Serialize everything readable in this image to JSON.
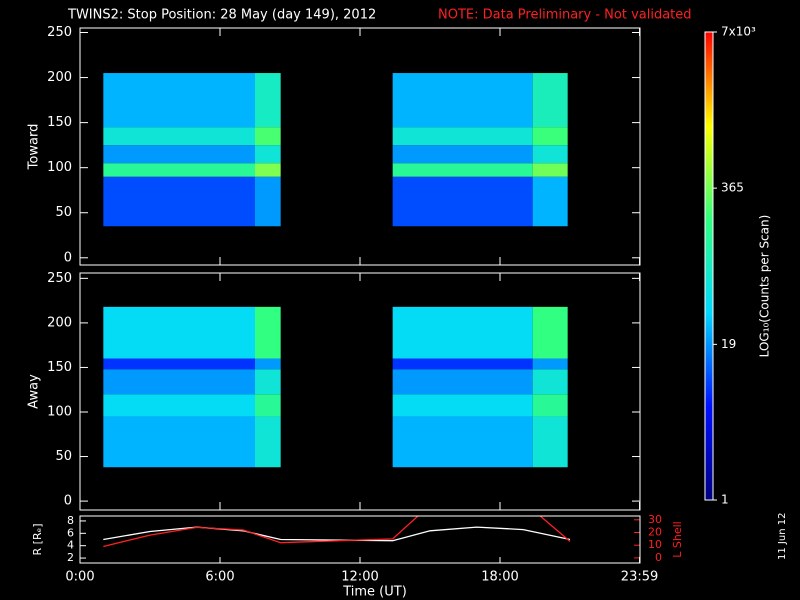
{
  "chart_data": [
    {
      "type": "heatmap",
      "title": "TWINS2: Stop Position: 28 May (day 149), 2012",
      "note": "NOTE: Data Preliminary - Not validated",
      "ylabel": "Toward",
      "xlim": [
        0,
        24
      ],
      "ylim": [
        -8,
        255
      ],
      "yticks": [
        0,
        50,
        100,
        150,
        200,
        250
      ],
      "x_bins": [
        1,
        7.5,
        8.6,
        13.4,
        19.4,
        20.9
      ],
      "y_bins": [
        35,
        90,
        105,
        125,
        145,
        205
      ],
      "z": [
        [
          10,
          20,
          null,
          10,
          25
        ],
        [
          150,
          400,
          null,
          150,
          350
        ],
        [
          20,
          60,
          null,
          20,
          60
        ],
        [
          60,
          250,
          null,
          60,
          220
        ],
        [
          25,
          80,
          null,
          25,
          90
        ]
      ],
      "clim": [
        1,
        7000
      ],
      "log_color": true,
      "cticks": [
        {
          "value": 7000,
          "label": "7x10³"
        },
        365,
        19,
        1
      ],
      "clabel": "LOG₁₀(Counts per Scan)",
      "colormap": [
        "#000080",
        "#0010ff",
        "#00d8ff",
        "#30ff80",
        "#ffff00",
        "#ff0000"
      ]
    },
    {
      "type": "heatmap",
      "ylabel": "Away",
      "xlim": [
        0,
        24
      ],
      "ylim": [
        -10,
        256
      ],
      "yticks": [
        0,
        50,
        100,
        150,
        200,
        250
      ],
      "x_bins": [
        1,
        7.5,
        8.6,
        13.4,
        19.4,
        20.9
      ],
      "y_bins": [
        38,
        95,
        120,
        148,
        160,
        218
      ],
      "z": [
        [
          25,
          60,
          null,
          25,
          60
        ],
        [
          40,
          150,
          null,
          40,
          150
        ],
        [
          20,
          60,
          null,
          20,
          60
        ],
        [
          8,
          20,
          null,
          8,
          20
        ],
        [
          40,
          200,
          null,
          40,
          200
        ]
      ]
    },
    {
      "type": "line",
      "ylabel": "R [Rₑ]",
      "y2label": "L Shell",
      "xlabel": "Time (UT)",
      "annotation": "11 Jun 12",
      "xlim": [
        0,
        24
      ],
      "xticks": [
        {
          "value": 0,
          "label": "0:00"
        },
        {
          "value": 6,
          "label": "6:00"
        },
        {
          "value": 12,
          "label": "12:00"
        },
        {
          "value": 18,
          "label": "18:00"
        },
        {
          "value": 23.98,
          "label": "23:59"
        }
      ],
      "ylim": [
        1.2,
        8.8
      ],
      "yticks": [
        2,
        4,
        6,
        8
      ],
      "y2lim": [
        -4,
        33
      ],
      "y2ticks": [
        0,
        10,
        20,
        30
      ],
      "series": [
        {
          "name": "R",
          "color": "#ffffff",
          "x": [
            1,
            3,
            5,
            7,
            8.6,
            13.4,
            15,
            17,
            19,
            21
          ],
          "values": [
            5,
            6.3,
            7,
            6.4,
            5,
            4.8,
            6.4,
            7,
            6.6,
            5
          ]
        },
        {
          "name": "L",
          "color": "#ff2020",
          "axis": "y2",
          "x": [
            1,
            3,
            5,
            7,
            8.6,
            13.4,
            14.6,
            19.6,
            21
          ],
          "values": [
            9,
            18,
            24,
            22,
            12,
            15,
            35,
            35,
            13
          ]
        }
      ]
    }
  ]
}
